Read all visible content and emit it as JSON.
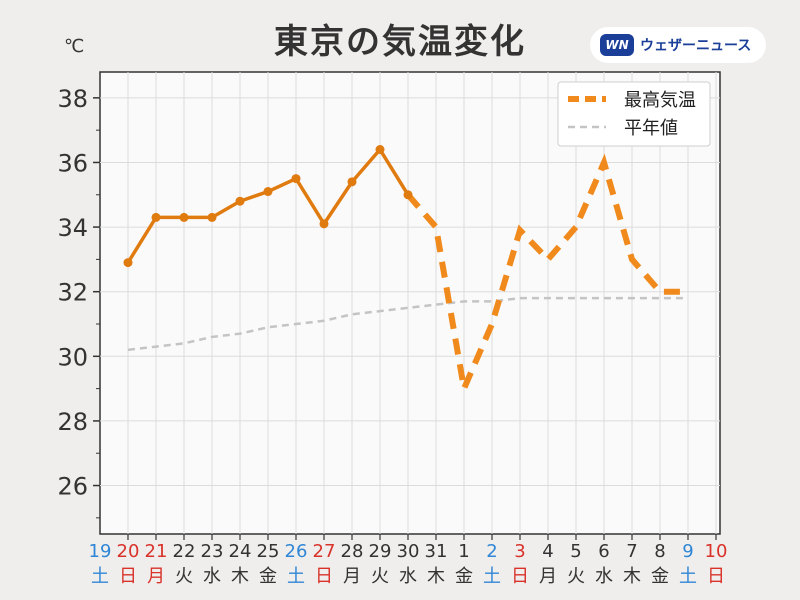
{
  "title": "東京の気温変化",
  "brand": {
    "mark": "WN",
    "name": "ウェザーニュース",
    "color": "#1b3f99"
  },
  "unit": "℃",
  "colors": {
    "observed": "#e07b10",
    "forecast": "#f08a1c",
    "normal": "#c4c4c4",
    "saturday": "#2f86d6",
    "holiday": "#d8322a",
    "weekday": "#333333"
  },
  "chart_data": {
    "type": "line",
    "ylim": [
      24.5,
      38.8
    ],
    "yticks": [
      26,
      28,
      30,
      32,
      34,
      36,
      38
    ],
    "grid": true,
    "legend_position": "top-right",
    "legend": [
      "最高気温",
      "平年値"
    ],
    "categories": [
      {
        "date": "19",
        "dow": "土",
        "kind": "sat"
      },
      {
        "date": "20",
        "dow": "日",
        "kind": "hol"
      },
      {
        "date": "21",
        "dow": "月",
        "kind": "hol"
      },
      {
        "date": "22",
        "dow": "火",
        "kind": "wk"
      },
      {
        "date": "23",
        "dow": "水",
        "kind": "wk"
      },
      {
        "date": "24",
        "dow": "木",
        "kind": "wk"
      },
      {
        "date": "25",
        "dow": "金",
        "kind": "wk"
      },
      {
        "date": "26",
        "dow": "土",
        "kind": "sat"
      },
      {
        "date": "27",
        "dow": "日",
        "kind": "hol"
      },
      {
        "date": "28",
        "dow": "月",
        "kind": "wk"
      },
      {
        "date": "29",
        "dow": "火",
        "kind": "wk"
      },
      {
        "date": "30",
        "dow": "水",
        "kind": "wk"
      },
      {
        "date": "31",
        "dow": "木",
        "kind": "wk"
      },
      {
        "date": "1",
        "dow": "金",
        "kind": "wk"
      },
      {
        "date": "2",
        "dow": "土",
        "kind": "sat"
      },
      {
        "date": "3",
        "dow": "日",
        "kind": "hol"
      },
      {
        "date": "4",
        "dow": "月",
        "kind": "wk"
      },
      {
        "date": "5",
        "dow": "火",
        "kind": "wk"
      },
      {
        "date": "6",
        "dow": "水",
        "kind": "wk"
      },
      {
        "date": "7",
        "dow": "木",
        "kind": "wk"
      },
      {
        "date": "8",
        "dow": "金",
        "kind": "wk"
      },
      {
        "date": "9",
        "dow": "土",
        "kind": "sat"
      },
      {
        "date": "10",
        "dow": "日",
        "kind": "hol"
      }
    ],
    "series": [
      {
        "name": "最高気温",
        "style": "observed",
        "values": [
          null,
          32.9,
          34.3,
          34.3,
          34.3,
          34.8,
          35.1,
          35.5,
          34.1,
          35.4,
          36.4,
          35.0,
          null,
          null,
          null,
          null,
          null,
          null,
          null,
          null,
          null,
          null,
          null
        ]
      },
      {
        "name": "最高気温",
        "style": "forecast",
        "values": [
          null,
          null,
          null,
          null,
          null,
          null,
          null,
          null,
          null,
          null,
          null,
          35.0,
          34.0,
          29.0,
          31.0,
          33.9,
          33.0,
          34.0,
          36.0,
          33.0,
          32.0,
          32.0,
          null
        ]
      },
      {
        "name": "平年値",
        "style": "normal",
        "values": [
          null,
          30.2,
          30.3,
          30.4,
          30.6,
          30.7,
          30.9,
          31.0,
          31.1,
          31.3,
          31.4,
          31.5,
          31.6,
          31.7,
          31.7,
          31.8,
          31.8,
          31.8,
          31.8,
          31.8,
          31.8,
          31.8,
          null
        ]
      }
    ]
  }
}
